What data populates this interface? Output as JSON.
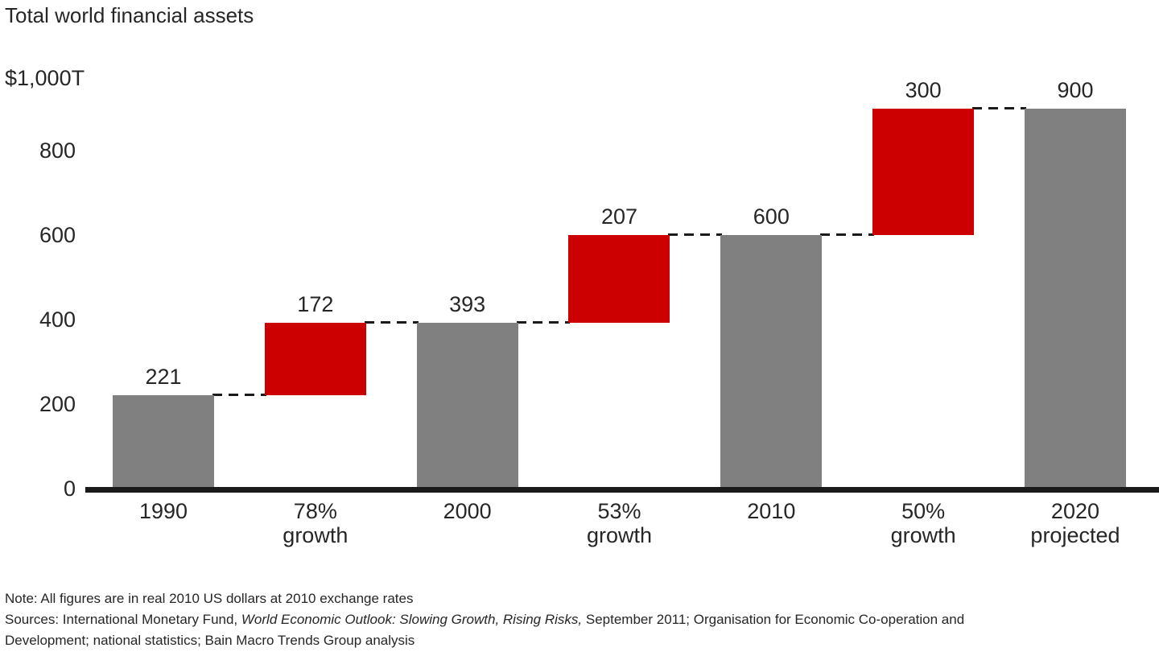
{
  "chart_data": {
    "type": "bar",
    "subtype": "waterfall",
    "title": "Total world financial assets",
    "y_axis": {
      "top_label": "$1,000T",
      "ticks": [
        0,
        200,
        400,
        600,
        800
      ],
      "ylim": [
        0,
        1000
      ],
      "grid": false
    },
    "bars": [
      {
        "label_lines": [
          "1990"
        ],
        "value_label": "221",
        "start": 0,
        "end": 221,
        "color": "gray"
      },
      {
        "label_lines": [
          "78%",
          "growth"
        ],
        "value_label": "172",
        "start": 221,
        "end": 393,
        "color": "red"
      },
      {
        "label_lines": [
          "2000"
        ],
        "value_label": "393",
        "start": 0,
        "end": 393,
        "color": "gray"
      },
      {
        "label_lines": [
          "53%",
          "growth"
        ],
        "value_label": "207",
        "start": 393,
        "end": 600,
        "color": "red"
      },
      {
        "label_lines": [
          "2010"
        ],
        "value_label": "600",
        "start": 0,
        "end": 600,
        "color": "gray"
      },
      {
        "label_lines": [
          "50%",
          "growth"
        ],
        "value_label": "300",
        "start": 600,
        "end": 900,
        "color": "red"
      },
      {
        "label_lines": [
          "2020",
          "projected"
        ],
        "value_label": "900",
        "start": 0,
        "end": 900,
        "color": "gray"
      }
    ],
    "colors": {
      "red": "#cc0000",
      "gray": "#808080",
      "axis": "#1a1a1a",
      "text": "#262626"
    }
  },
  "footnotes": {
    "note": "Note: All figures are in real 2010 US dollars at 2010 exchange rates",
    "sources_prefix": "Sources: International Monetary Fund, ",
    "sources_italic": "World Economic Outlook: Slowing Growth, Rising Risks,",
    "sources_mid": " September 2011; Organisation for Economic Co-operation and",
    "sources_line2": "Development; national statistics; Bain Macro Trends Group analysis"
  }
}
